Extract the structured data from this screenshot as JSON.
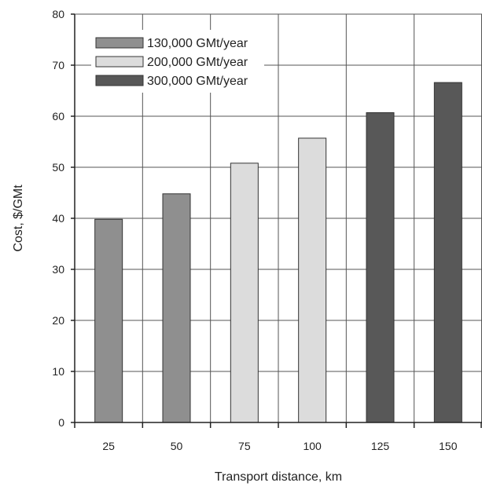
{
  "chart_data": {
    "type": "bar",
    "categories": [
      "25",
      "50",
      "75",
      "100",
      "125",
      "150"
    ],
    "values": [
      39.8,
      44.8,
      50.8,
      55.7,
      60.7,
      66.6
    ],
    "category_series": [
      0,
      0,
      1,
      1,
      2,
      2
    ],
    "series": [
      {
        "name": "130,000 GMt/year",
        "color": "#8f8f8f"
      },
      {
        "name": "200,000 GMt/year",
        "color": "#dcdcdc"
      },
      {
        "name": "300,000 GMt/year",
        "color": "#585858"
      }
    ],
    "title": "",
    "xlabel": "Transport distance, km",
    "ylabel": "Cost, $/GMt",
    "ylim": [
      0,
      80
    ],
    "yticks": [
      "0",
      "10",
      "20",
      "30",
      "40",
      "50",
      "60",
      "70",
      "80"
    ],
    "grid": true,
    "legend_position": "top-left"
  }
}
